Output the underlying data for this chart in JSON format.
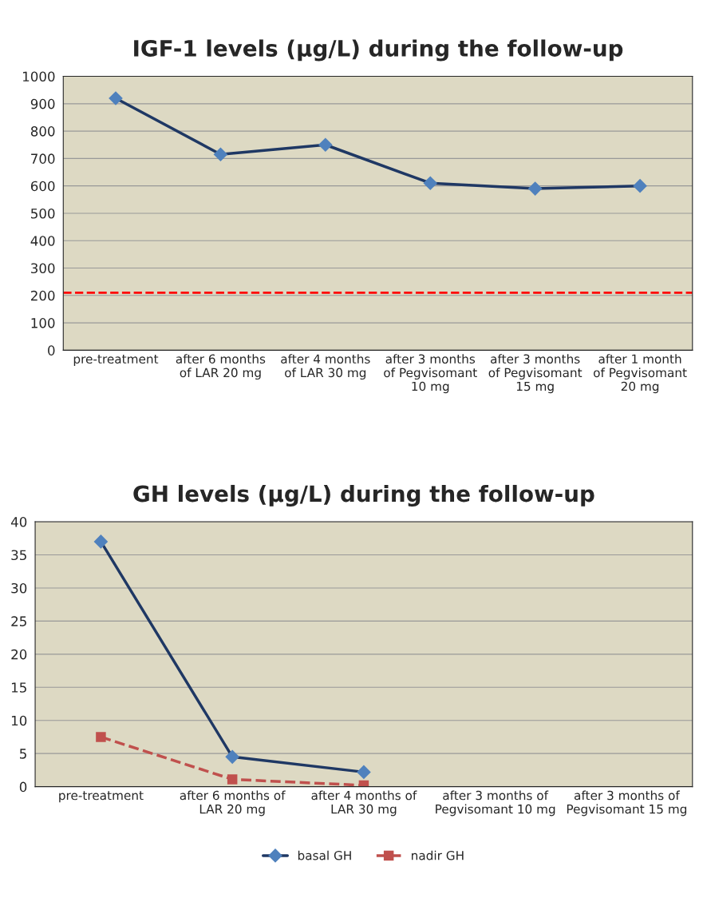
{
  "chart_data": [
    {
      "type": "line",
      "title": "IGF-1 levels (µg/L) during the follow-up",
      "categories": [
        "pre-treatment",
        "after 6 months\nof LAR 20 mg",
        "after 4 months\nof LAR 30 mg",
        "after 3 months\nof Pegvisomant\n10 mg",
        "after 3 months\nof Pegvisomant\n15 mg",
        "after 1 month\nof Pegvisomant\n20 mg"
      ],
      "series": [
        {
          "color": "#1f3864",
          "values": [
            920,
            715,
            750,
            610,
            590,
            600
          ],
          "marker": "diamond",
          "line_style": "solid"
        }
      ],
      "ylim": [
        0,
        1000
      ],
      "yticks": [
        0,
        100,
        200,
        300,
        400,
        500,
        600,
        700,
        800,
        900,
        1000
      ],
      "grid": "y",
      "ref_lines": [
        {
          "axis": "y",
          "value": 210,
          "color": "#ff0000",
          "line_style": "dashed"
        }
      ]
    },
    {
      "type": "line",
      "title": "GH levels (µg/L) during the follow-up",
      "categories": [
        "pre-treatment",
        "after 6 months of\nLAR 20 mg",
        "after 4 months of\nLAR 30 mg",
        "after 3 months of\nPegvisomant 10 mg",
        "after 3 months of\nPegvisomant 15 mg"
      ],
      "series": [
        {
          "name": "basal GH",
          "color": "#1f3864",
          "values": [
            37,
            4.5,
            2.2,
            null,
            null
          ],
          "marker": "diamond",
          "line_style": "solid"
        },
        {
          "name": "nadir GH",
          "color": "#c0504d",
          "values": [
            7.5,
            1.1,
            0.2,
            null,
            null
          ],
          "marker": "square",
          "line_style": "dashed"
        }
      ],
      "ylim": [
        0,
        40
      ],
      "yticks": [
        0,
        5,
        10,
        15,
        20,
        25,
        30,
        35,
        40
      ],
      "grid": "y",
      "legend": "bottom"
    }
  ]
}
